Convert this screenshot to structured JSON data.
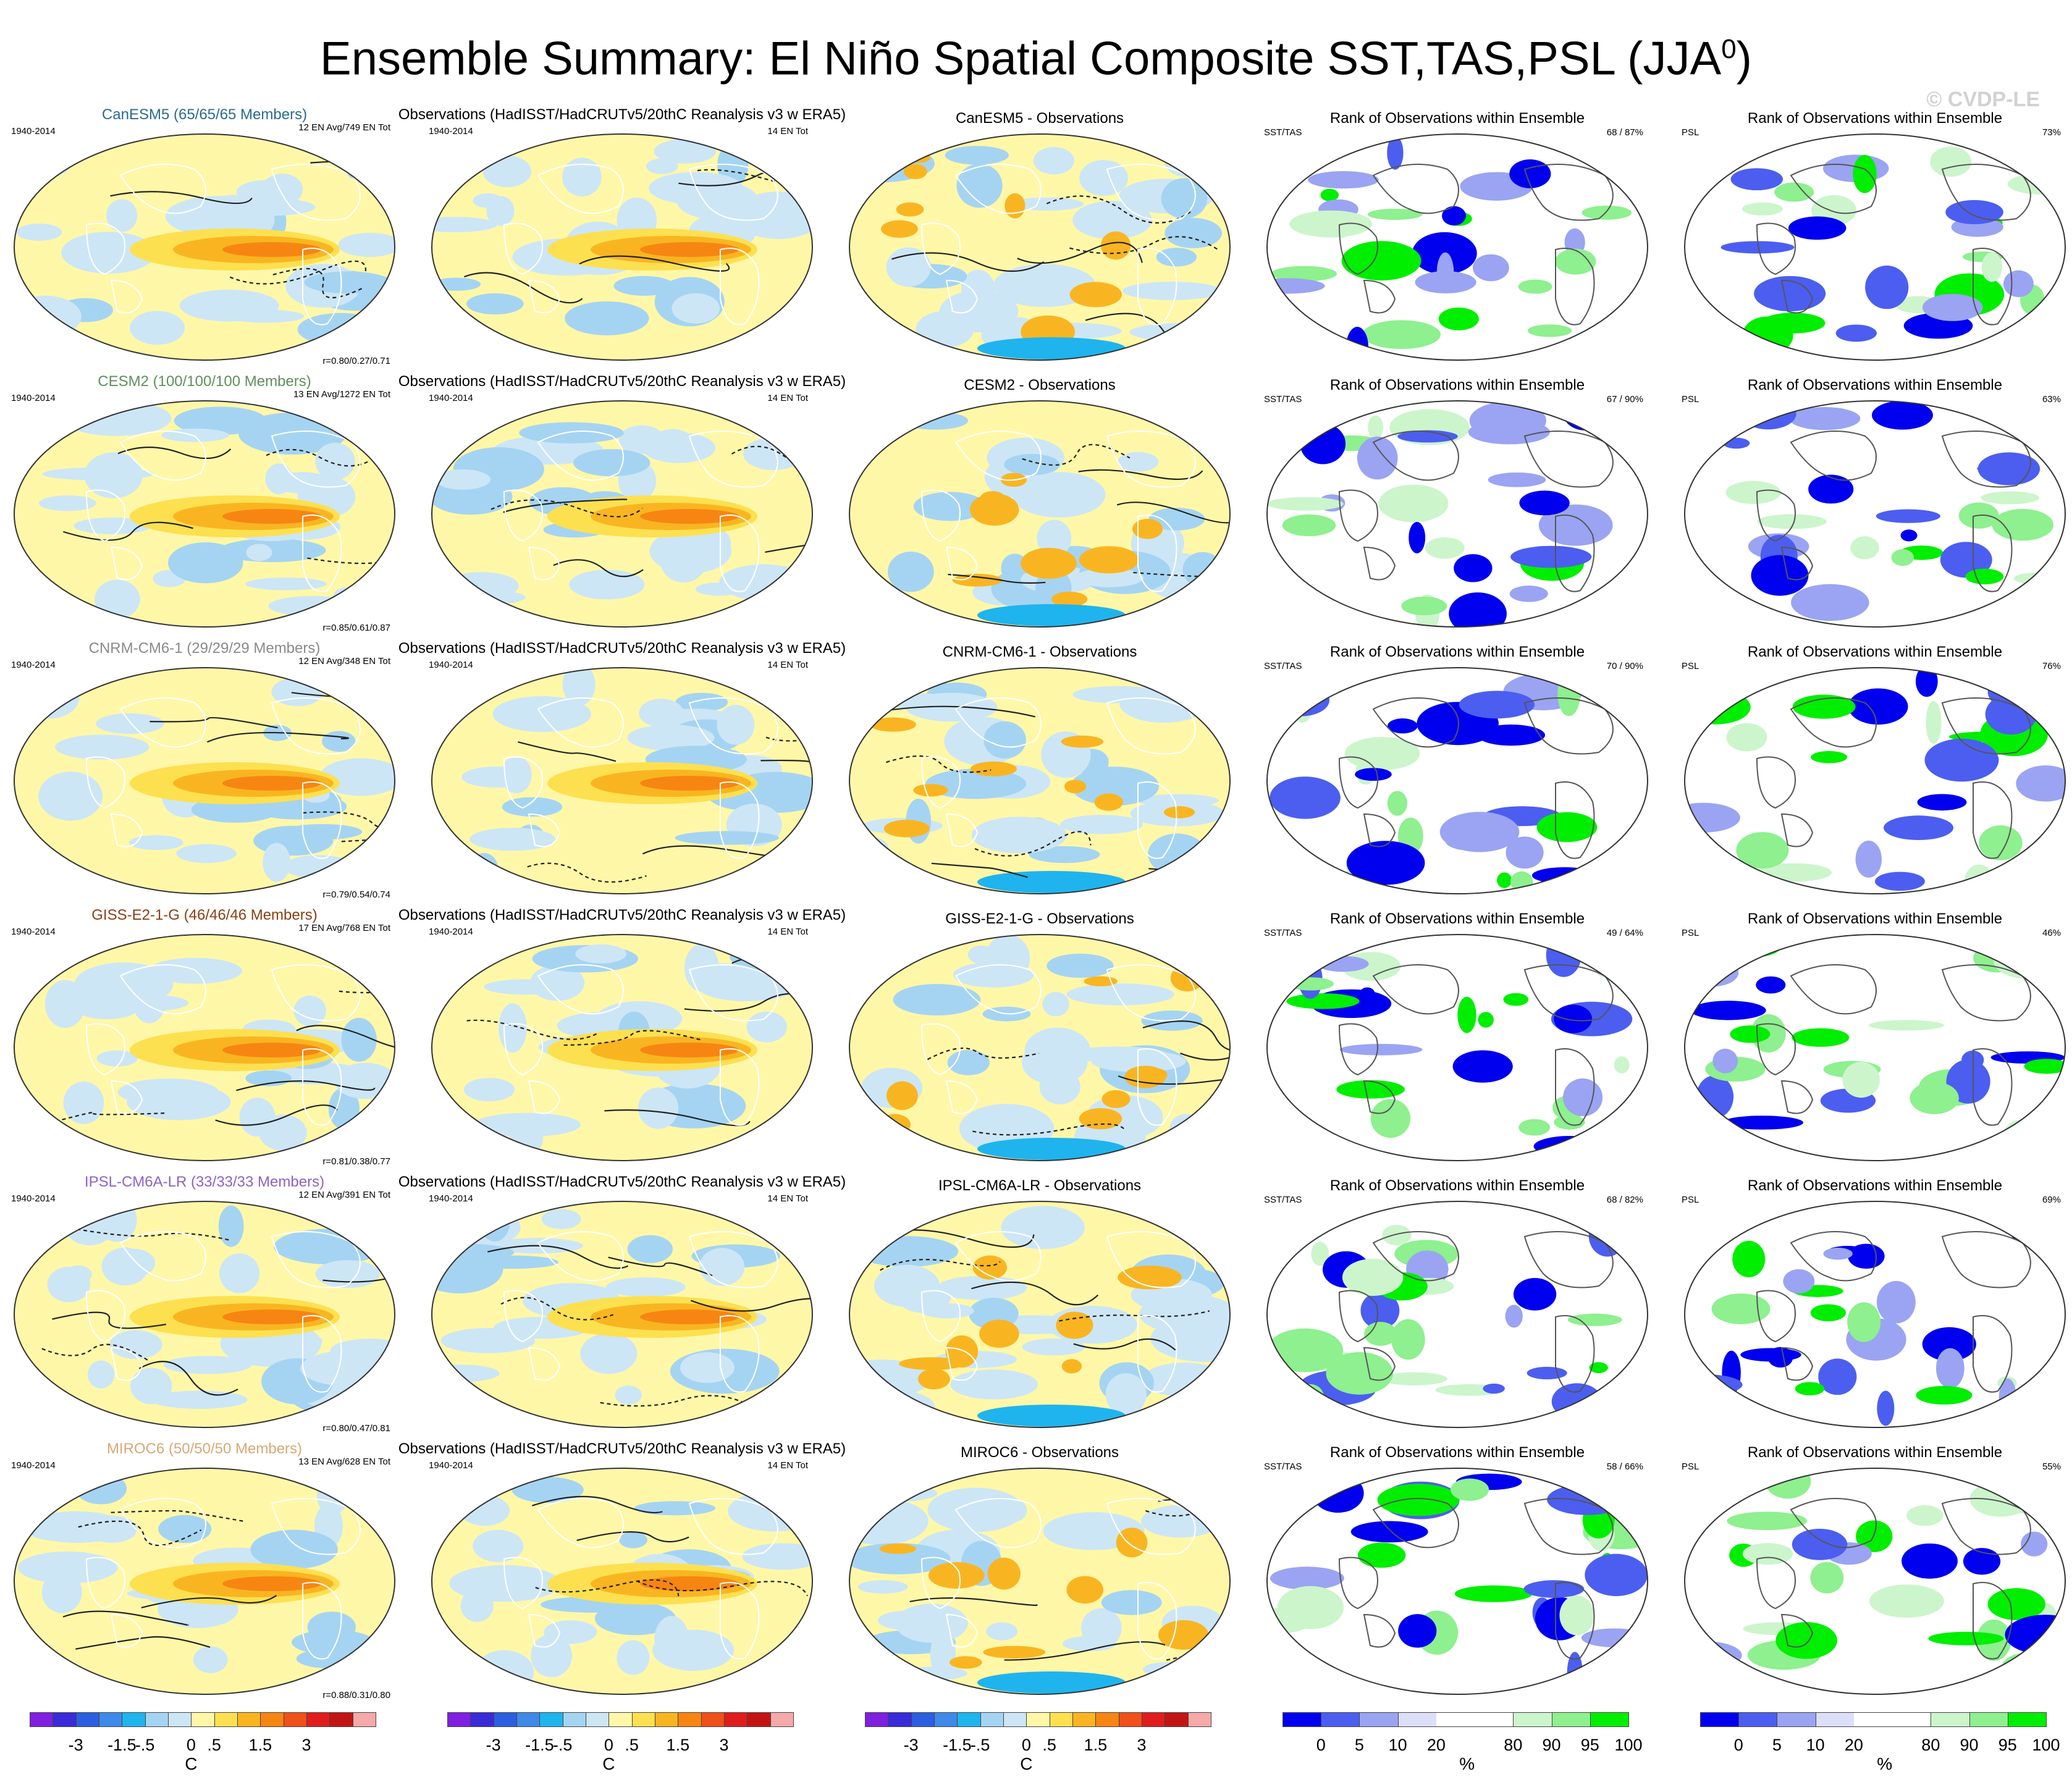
{
  "title": "Ensemble Summary: El Niño Spatial Composite SST,TAS,PSL (JJA",
  "title_superscript": "0",
  "title_suffix": ")",
  "watermark": "© CVDP-LE",
  "colors": {
    "sst_scale": [
      "#7f1fe0",
      "#3a2bd8",
      "#2b5fe0",
      "#3f8ae8",
      "#1fb4ee",
      "#a5d4f2",
      "#cce6f6",
      "#fff7a8",
      "#fde050",
      "#f9b521",
      "#f78512",
      "#f0501a",
      "#e01d1d",
      "#c31414",
      "#f5a9a9"
    ],
    "rank_scale": [
      "#0000ee",
      "#4c5ef0",
      "#9aa4f2",
      "#dcdff8",
      "#ffffff",
      "#ffffff",
      "#ccf5cc",
      "#8ef08e",
      "#00ee00"
    ],
    "model_colors": {
      "CanESM5": "#2b6b8f",
      "CESM2": "#5f8f5a",
      "CNRM-CM6-1": "#8a8a8a",
      "GISS-E2-1-G": "#8a3f12",
      "IPSL-CM6A-LR": "#8e62c4",
      "MIROC6": "#d8a878"
    }
  },
  "rows": [
    {
      "model": "CanESM5",
      "model_label": "CanESM5 (65/65/65 Members)",
      "period": "1940-2014",
      "en_avg": "12 EN Avg/749 EN Tot",
      "corr": "r=0.80/0.27/0.71",
      "obs_title": "Observations (HadISST/HadCRUTv5/20thC Reanalysis v3 w ERA5)",
      "obs_period": "1940-2014",
      "obs_en": "14 EN Tot",
      "diff_title": "CanESM5 - Observations",
      "rank_title": "Rank of Observations within Ensemble",
      "rank_var": "SST/TAS",
      "rank_pct": "68 / 87%",
      "rank_psl_title": "Rank of Observations within Ensemble",
      "rank_psl_var": "PSL",
      "rank_psl_pct": "73%"
    },
    {
      "model": "CESM2",
      "model_label": "CESM2 (100/100/100 Members)",
      "period": "1940-2014",
      "en_avg": "13 EN Avg/1272 EN Tot",
      "corr": "r=0.85/0.61/0.87",
      "obs_title": "Observations (HadISST/HadCRUTv5/20thC Reanalysis v3 w ERA5)",
      "obs_period": "1940-2014",
      "obs_en": "14 EN Tot",
      "diff_title": "CESM2 - Observations",
      "rank_title": "Rank of Observations within Ensemble",
      "rank_var": "SST/TAS",
      "rank_pct": "67 / 90%",
      "rank_psl_title": "Rank of Observations within Ensemble",
      "rank_psl_var": "PSL",
      "rank_psl_pct": "63%"
    },
    {
      "model": "CNRM-CM6-1",
      "model_label": "CNRM-CM6-1 (29/29/29 Members)",
      "period": "1940-2014",
      "en_avg": "12 EN Avg/348 EN Tot",
      "corr": "r=0.79/0.54/0.74",
      "obs_title": "Observations (HadISST/HadCRUTv5/20thC Reanalysis v3 w ERA5)",
      "obs_period": "1940-2014",
      "obs_en": "14 EN Tot",
      "diff_title": "CNRM-CM6-1 - Observations",
      "rank_title": "Rank of Observations within Ensemble",
      "rank_var": "SST/TAS",
      "rank_pct": "70 / 90%",
      "rank_psl_title": "Rank of Observations within Ensemble",
      "rank_psl_var": "PSL",
      "rank_psl_pct": "76%"
    },
    {
      "model": "GISS-E2-1-G",
      "model_label": "GISS-E2-1-G (46/46/46 Members)",
      "period": "1940-2014",
      "en_avg": "17 EN Avg/768 EN Tot",
      "corr": "r=0.81/0.38/0.77",
      "obs_title": "Observations (HadISST/HadCRUTv5/20thC Reanalysis v3 w ERA5)",
      "obs_period": "1940-2014",
      "obs_en": "14 EN Tot",
      "diff_title": "GISS-E2-1-G - Observations",
      "rank_title": "Rank of Observations within Ensemble",
      "rank_var": "SST/TAS",
      "rank_pct": "49 / 64%",
      "rank_psl_title": "Rank of Observations within Ensemble",
      "rank_psl_var": "PSL",
      "rank_psl_pct": "46%"
    },
    {
      "model": "IPSL-CM6A-LR",
      "model_label": "IPSL-CM6A-LR (33/33/33 Members)",
      "period": "1940-2014",
      "en_avg": "12 EN Avg/391 EN Tot",
      "corr": "r=0.80/0.47/0.81",
      "obs_title": "Observations (HadISST/HadCRUTv5/20thC Reanalysis v3 w ERA5)",
      "obs_period": "1940-2014",
      "obs_en": "14 EN Tot",
      "diff_title": "IPSL-CM6A-LR - Observations",
      "rank_title": "Rank of Observations within Ensemble",
      "rank_var": "SST/TAS",
      "rank_pct": "68 / 82%",
      "rank_psl_title": "Rank of Observations within Ensemble",
      "rank_psl_var": "PSL",
      "rank_psl_pct": "69%"
    },
    {
      "model": "MIROC6",
      "model_label": "MIROC6 (50/50/50 Members)",
      "period": "1940-2014",
      "en_avg": "13 EN Avg/628 EN Tot",
      "corr": "r=0.88/0.31/0.80",
      "obs_title": "Observations (HadISST/HadCRUTv5/20thC Reanalysis v3 w ERA5)",
      "obs_period": "1940-2014",
      "obs_en": "14 EN Tot",
      "diff_title": "MIROC6 - Observations",
      "rank_title": "Rank of Observations within Ensemble",
      "rank_var": "SST/TAS",
      "rank_pct": "58 / 66%",
      "rank_psl_title": "Rank of Observations within Ensemble",
      "rank_psl_var": "PSL",
      "rank_psl_pct": "55%"
    }
  ],
  "colorbars": {
    "sst": {
      "ticks": [
        "-3",
        "-1.5",
        "-.5",
        "0",
        ".5",
        "1.5",
        "3"
      ],
      "unit": "C"
    },
    "rank": {
      "ticks": [
        "0",
        "5",
        "10",
        "20",
        "80",
        "90",
        "95",
        "100"
      ],
      "unit": "%"
    }
  }
}
